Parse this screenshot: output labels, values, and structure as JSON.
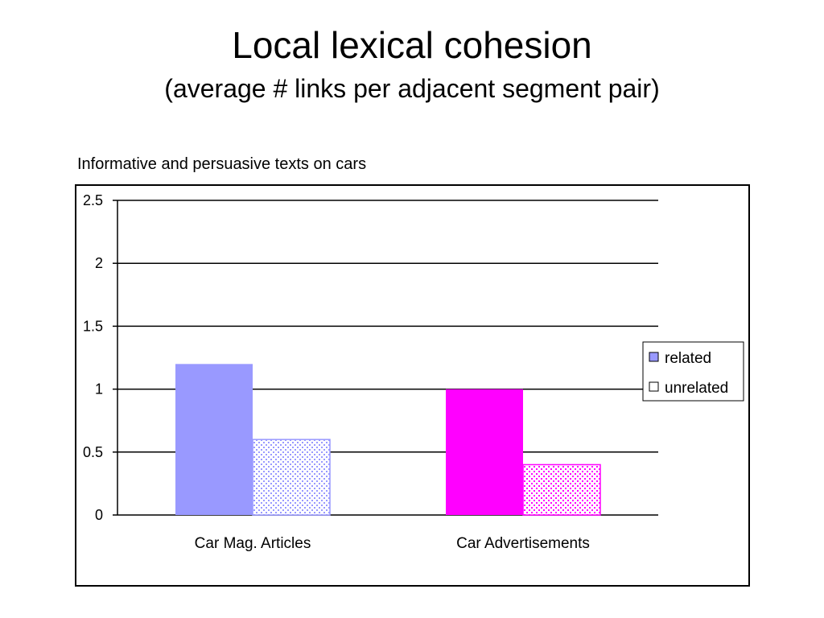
{
  "slide": {
    "title": "Local lexical cohesion",
    "subtitle": "(average # links per adjacent segment pair)",
    "caption": "Informative and persuasive texts on cars"
  },
  "chart_data": {
    "type": "bar",
    "title": "",
    "xlabel": "",
    "ylabel": "",
    "categories": [
      "Car Mag. Articles",
      "Car Advertisements"
    ],
    "ylim": [
      0,
      2.5
    ],
    "yticks": [
      "0",
      "0.5",
      "1",
      "1.5",
      "2",
      "2.5"
    ],
    "ytick_values": [
      0,
      0.5,
      1,
      1.5,
      2,
      2.5
    ],
    "grid": true,
    "legend_position": "right",
    "series": [
      {
        "name": "related",
        "values": [
          1.2,
          1.0
        ],
        "colors": [
          "#9999ff",
          "#ff00ff"
        ],
        "pattern": "solid"
      },
      {
        "name": "unrelated",
        "values": [
          0.6,
          0.4
        ],
        "colors": [
          "#9999ff",
          "#ff00ff"
        ],
        "pattern": "dotted"
      }
    ]
  }
}
